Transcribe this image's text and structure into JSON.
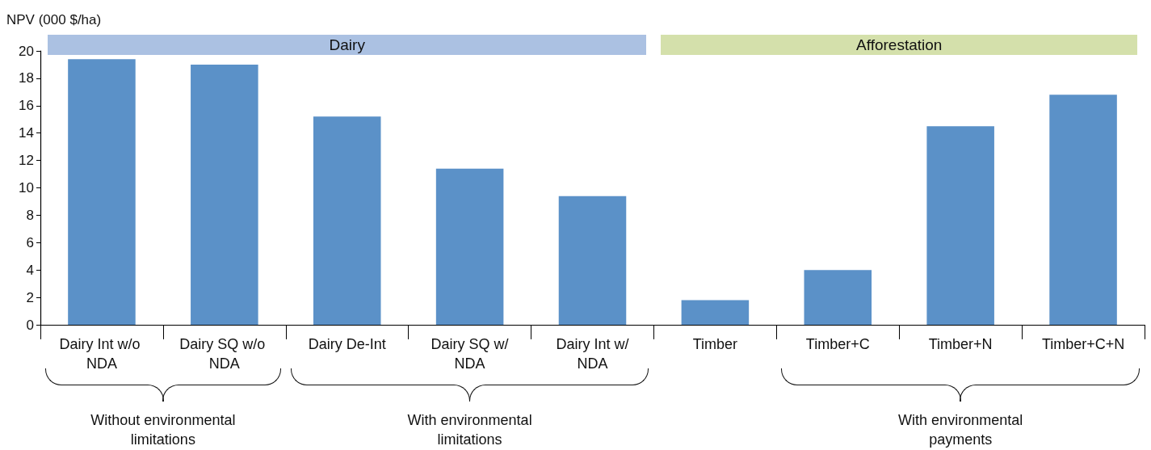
{
  "chart_data": {
    "type": "bar",
    "ylabel": "NPV (000 $/ha)",
    "categories": [
      "Dairy Int w/o NDA",
      "Dairy SQ w/o NDA",
      "Dairy De-Int",
      "Dairy SQ w/NDA",
      "Dairy Int w/NDA",
      "Timber",
      "Timber+C",
      "Timber+N",
      "Timber+C+N"
    ],
    "values": [
      19.4,
      19.0,
      15.2,
      11.4,
      9.4,
      1.8,
      4.0,
      14.5,
      16.8
    ],
    "color": "#5b91c8",
    "ylim": [
      0,
      20
    ],
    "yticks": [
      0,
      2,
      4,
      6,
      8,
      10,
      12,
      14,
      16,
      18,
      20
    ],
    "grid": false,
    "annotations": [
      "Dairy",
      "Afforestation",
      "Without environmental limitations",
      "With environmental limitations",
      "With environmental payments"
    ]
  }
}
